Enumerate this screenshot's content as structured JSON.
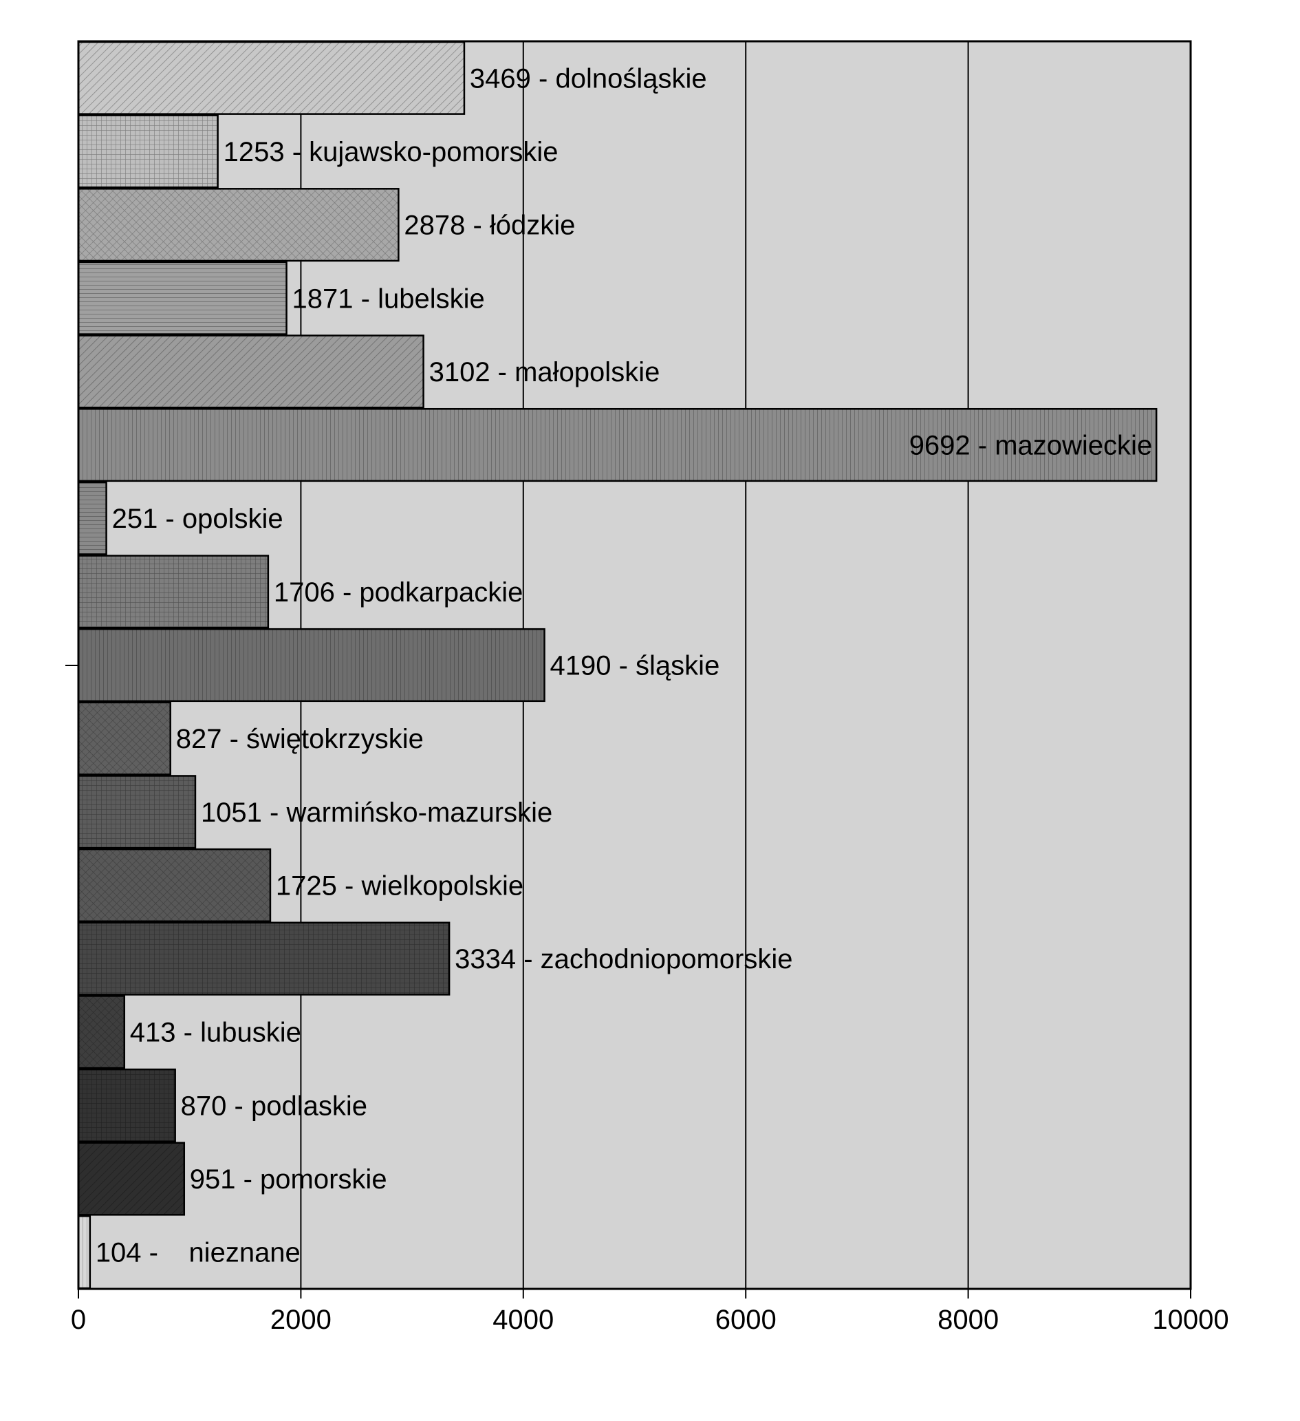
{
  "chart_data": {
    "type": "bar",
    "orientation": "horizontal",
    "categories": [
      "dolnośląskie",
      "kujawsko-pomorskie",
      "łódzkie",
      "lubelskie",
      "małopolskie",
      "mazowieckie",
      "opolskie",
      "podkarpackie",
      "śląskie",
      "świętokrzyskie",
      "warmińsko-mazurskie",
      "wielkopolskie",
      "zachodniopomorskie",
      "lubuskie",
      "podlaskie",
      "pomorskie",
      "nieznane"
    ],
    "values": [
      3469,
      1253,
      2878,
      1871,
      3102,
      9692,
      251,
      1706,
      4190,
      827,
      1051,
      1725,
      3334,
      413,
      870,
      951,
      104
    ],
    "data_labels": [
      "3469 - dolnośląskie",
      "1253 - kujawsko-pomorskie",
      "2878 - łódzkie",
      "1871 - lubelskie",
      "3102 - małopolskie",
      "9692 - mazowieckie",
      "251 - opolskie",
      "1706 - podkarpackie",
      "4190 - śląskie",
      "827 - świętokrzyskie",
      "1051 - warmińsko-mazurskie",
      "1725 - wielkopolskie",
      "3334 - zachodniopomorskie",
      "413 - lubuskie",
      "870 - podlaskie",
      "951 - pomorskie",
      "104 -    nieznane"
    ],
    "xlim": [
      0,
      10000
    ],
    "xticks": [
      0,
      2000,
      4000,
      6000,
      8000,
      10000
    ],
    "xtick_labels": [
      "0",
      "2000",
      "4000",
      "6000",
      "8000",
      "10000"
    ],
    "grid": "vertical",
    "plot_background": "#d3d3d3",
    "bar_colors": [
      "#c8c8c8",
      "#bebebe",
      "#a8a8a8",
      "#a0a0a0",
      "#9c9c9c",
      "#8c8c8c",
      "#8a8a8a",
      "#7e7e7e",
      "#6e6e6e",
      "#606060",
      "#5c5c5c",
      "#585858",
      "#474747",
      "#3e3e3e",
      "#333333",
      "#2e2e2e",
      "#d8d8d8"
    ],
    "title": "",
    "xlabel": "",
    "ylabel": ""
  }
}
